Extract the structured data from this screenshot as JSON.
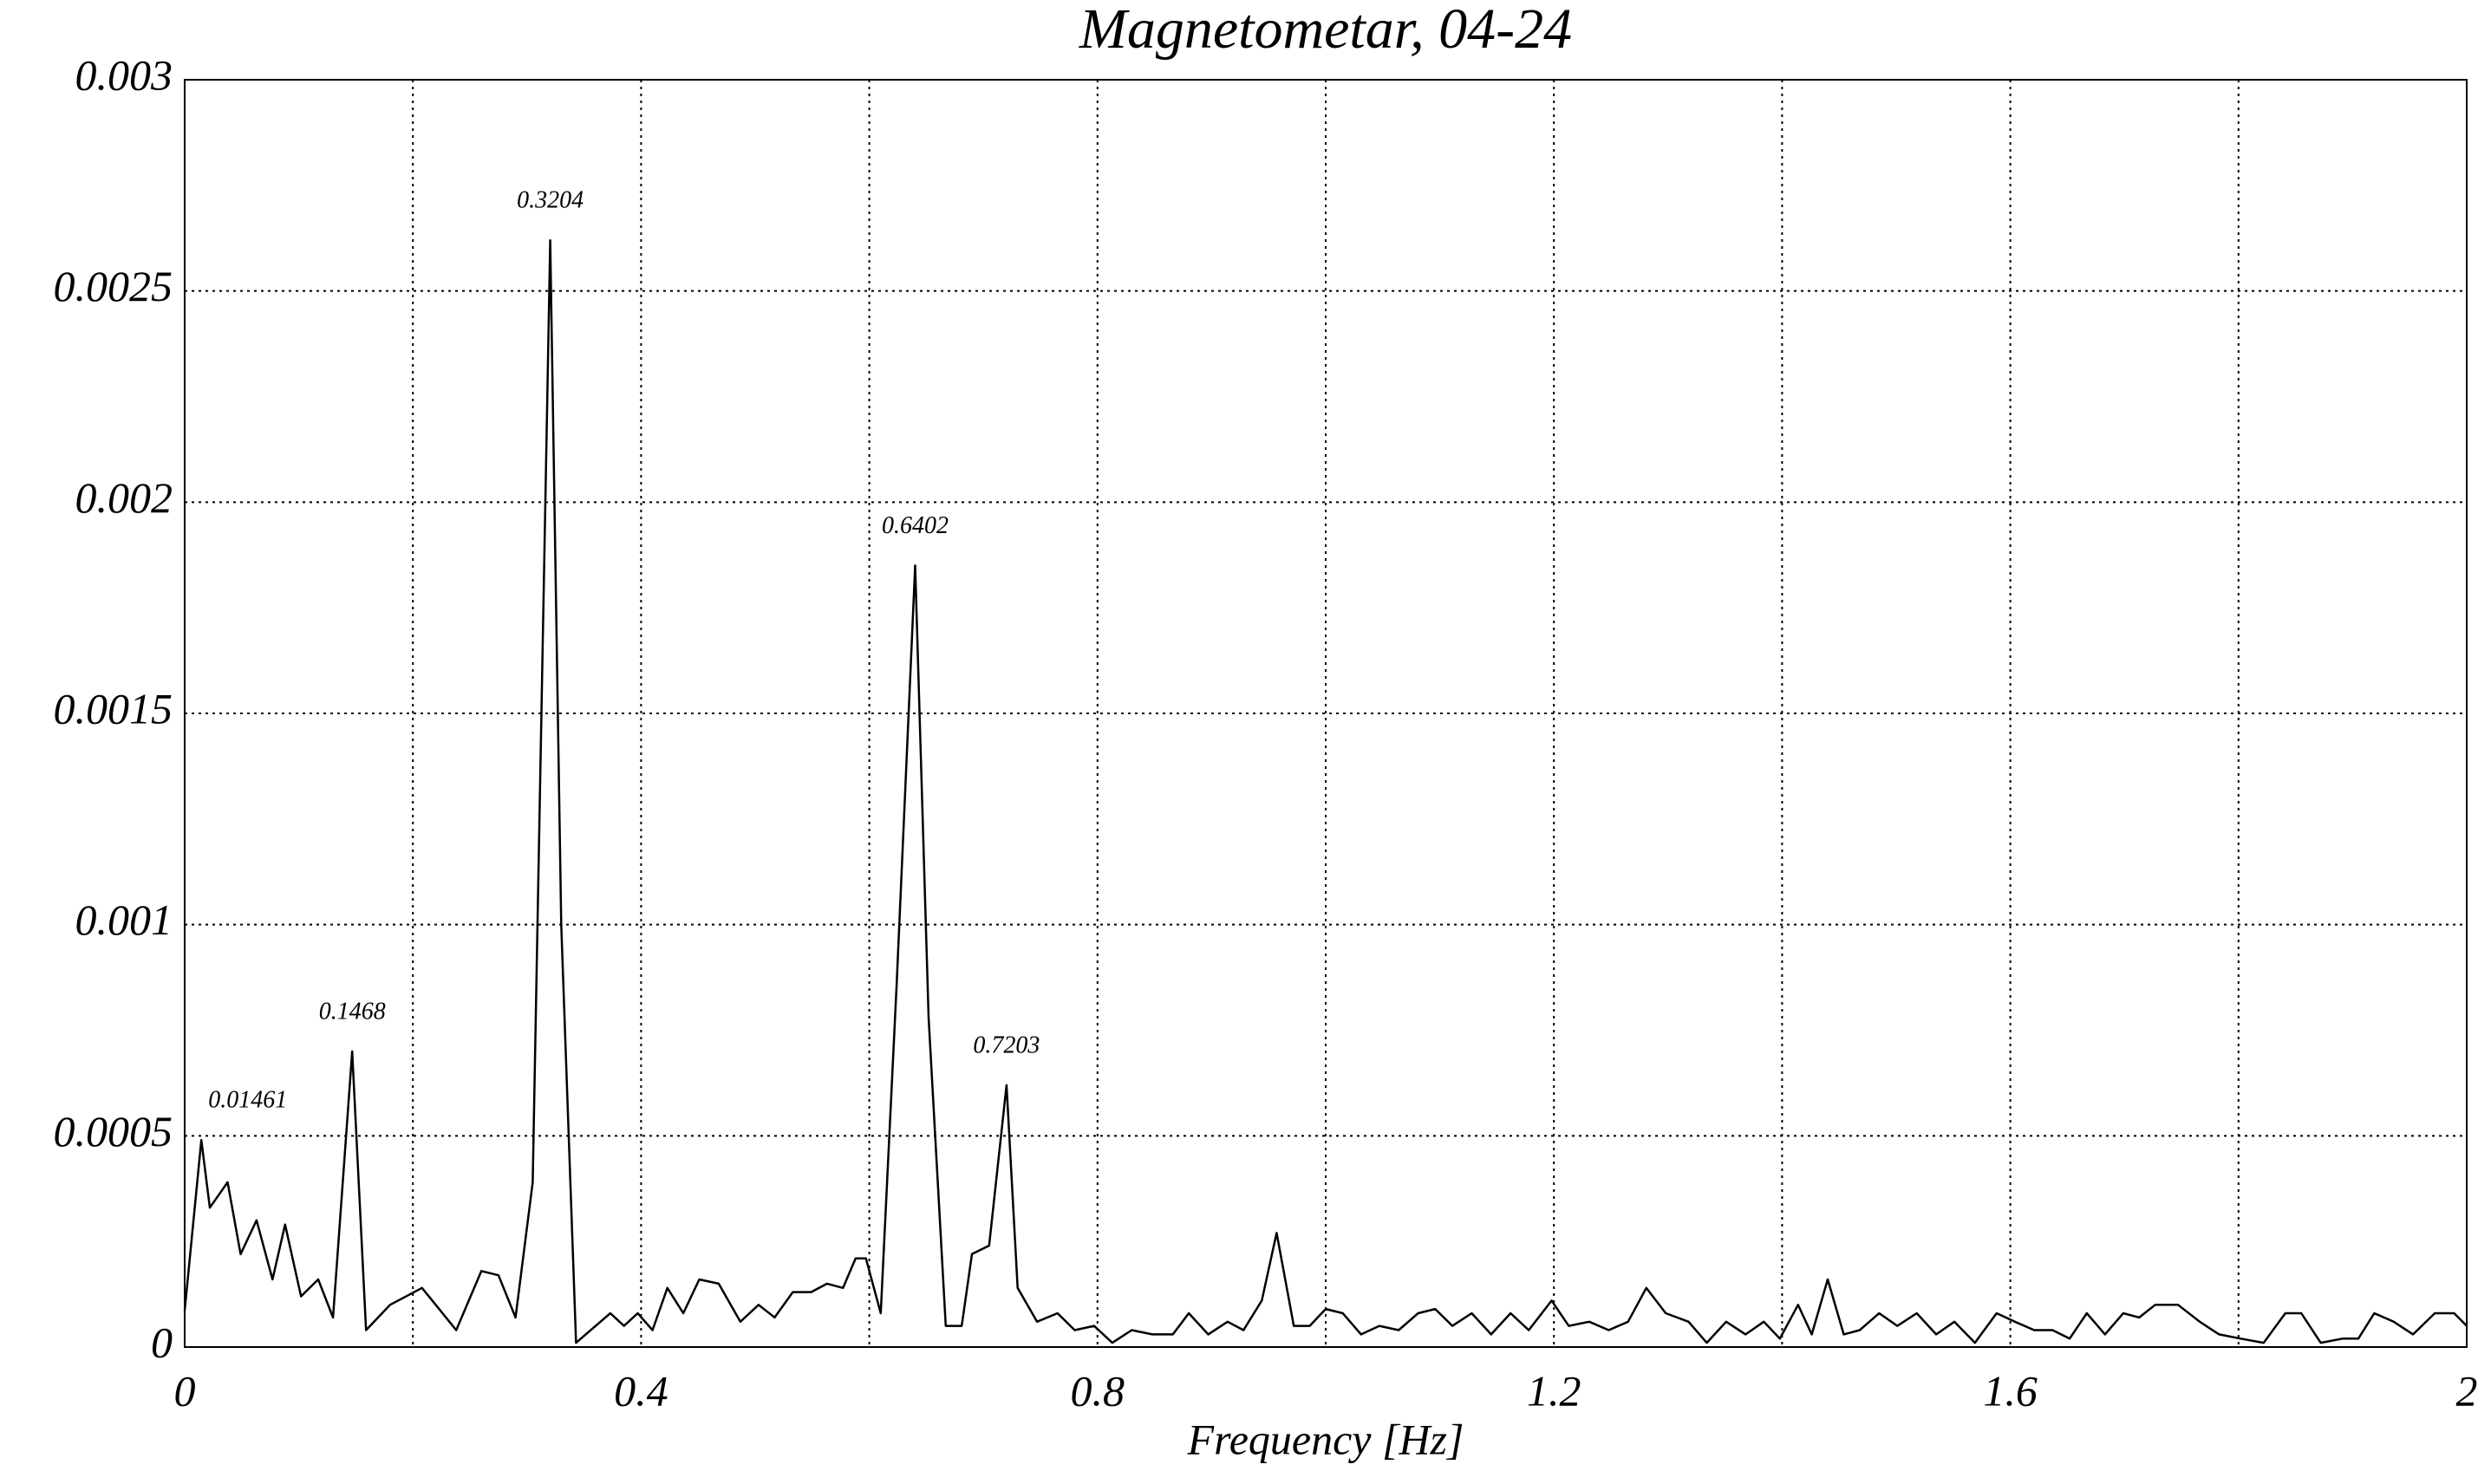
{
  "chart_data": {
    "type": "line",
    "title": "Magnetometar, 04-24",
    "xlabel": "Frequency [Hz]",
    "xlim": [
      0,
      2
    ],
    "ylim": [
      0,
      0.003
    ],
    "xticks": [
      0,
      0.4,
      0.8,
      1.2,
      1.6,
      2
    ],
    "xminorticks": [
      0.2,
      0.6,
      1.0,
      1.4,
      1.8
    ],
    "yticks": [
      0,
      0.0005,
      0.001,
      0.0015,
      0.002,
      0.0025,
      0.003
    ],
    "grid": true,
    "color": "#000000",
    "x": [
      0,
      0.01461,
      0.022,
      0.0376,
      0.049,
      0.063,
      0.077,
      0.088,
      0.102,
      0.117,
      0.13,
      0.1468,
      0.159,
      0.18,
      0.208,
      0.238,
      0.26,
      0.275,
      0.29,
      0.305,
      0.3204,
      0.33,
      0.343,
      0.373,
      0.385,
      0.397,
      0.41,
      0.423,
      0.437,
      0.451,
      0.468,
      0.487,
      0.503,
      0.517,
      0.533,
      0.549,
      0.563,
      0.577,
      0.588,
      0.597,
      0.61,
      0.624,
      0.6402,
      0.652,
      0.667,
      0.681,
      0.69,
      0.705,
      0.7203,
      0.73,
      0.747,
      0.765,
      0.78,
      0.797,
      0.813,
      0.83,
      0.848,
      0.866,
      0.88,
      0.897,
      0.914,
      0.928,
      0.944,
      0.957,
      0.972,
      0.986,
      1.0,
      1.015,
      1.031,
      1.047,
      1.064,
      1.081,
      1.096,
      1.111,
      1.128,
      1.145,
      1.162,
      1.178,
      1.198,
      1.213,
      1.231,
      1.248,
      1.265,
      1.281,
      1.298,
      1.318,
      1.334,
      1.351,
      1.368,
      1.384,
      1.398,
      1.414,
      1.426,
      1.44,
      1.454,
      1.468,
      1.485,
      1.501,
      1.518,
      1.535,
      1.551,
      1.569,
      1.588,
      1.604,
      1.621,
      1.637,
      1.652,
      1.667,
      1.683,
      1.699,
      1.713,
      1.727,
      1.747,
      1.766,
      1.783,
      1.802,
      1.822,
      1.841,
      1.855,
      1.872,
      1.891,
      1.905,
      1.919,
      1.936,
      1.953,
      1.972,
      1.989,
      2
    ],
    "values": [
      8.6e-05,
      0.00049,
      0.00033,
      0.00039,
      0.00022,
      0.0003,
      0.00016,
      0.00029,
      0.00012,
      0.00016,
      7e-05,
      0.0007,
      4e-05,
      0.0001,
      0.00014,
      4e-05,
      0.00018,
      0.00017,
      7e-05,
      0.00039,
      0.00262,
      0.001,
      1e-05,
      8e-05,
      5e-05,
      8e-05,
      4e-05,
      0.00014,
      8e-05,
      0.00016,
      0.00015,
      6e-05,
      0.0001,
      7e-05,
      0.00013,
      0.00013,
      0.00015,
      0.00014,
      0.00021,
      0.00021,
      8e-05,
      0.00086,
      0.00185,
      0.00078,
      5e-05,
      5e-05,
      0.00022,
      0.00024,
      0.00062,
      0.00014,
      6e-05,
      8e-05,
      4e-05,
      5e-05,
      1e-05,
      4e-05,
      3e-05,
      3e-05,
      8e-05,
      3e-05,
      6e-05,
      4e-05,
      0.00011,
      0.00027,
      5e-05,
      5e-05,
      9e-05,
      8e-05,
      3e-05,
      5e-05,
      4e-05,
      8e-05,
      9e-05,
      5e-05,
      8e-05,
      3e-05,
      8e-05,
      4e-05,
      0.00011,
      5e-05,
      6e-05,
      4e-05,
      6e-05,
      0.00014,
      8e-05,
      6e-05,
      1e-05,
      6e-05,
      3e-05,
      6e-05,
      2e-05,
      0.0001,
      3e-05,
      0.00016,
      3e-05,
      4e-05,
      8e-05,
      5e-05,
      8e-05,
      3e-05,
      6e-05,
      1e-05,
      8e-05,
      6e-05,
      4e-05,
      4e-05,
      2e-05,
      8e-05,
      3e-05,
      8e-05,
      7e-05,
      0.0001,
      0.0001,
      6e-05,
      3e-05,
      2e-05,
      1e-05,
      8e-05,
      8e-05,
      1e-05,
      2e-05,
      2e-05,
      8e-05,
      6e-05,
      3e-05,
      8e-05,
      8e-05,
      5e-05
    ],
    "peaks": [
      {
        "x": 0.01461,
        "y": 0.00049
      },
      {
        "x": 0.1468,
        "y": 0.0007
      },
      {
        "x": 0.3204,
        "y": 0.00262
      },
      {
        "x": 0.6402,
        "y": 0.00185
      },
      {
        "x": 0.7203,
        "y": 0.00062
      }
    ]
  }
}
